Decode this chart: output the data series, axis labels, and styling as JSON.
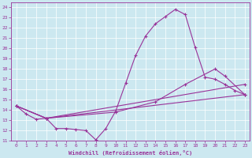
{
  "xlabel": "Windchill (Refroidissement éolien,°C)",
  "bg_color": "#cce8f0",
  "line_color": "#993399",
  "xlim": [
    -0.5,
    23.5
  ],
  "ylim": [
    11,
    24.5
  ],
  "xticks": [
    0,
    1,
    2,
    3,
    4,
    5,
    6,
    7,
    8,
    9,
    10,
    11,
    12,
    13,
    14,
    15,
    16,
    17,
    18,
    19,
    20,
    21,
    22,
    23
  ],
  "yticks": [
    11,
    12,
    13,
    14,
    15,
    16,
    17,
    18,
    19,
    20,
    21,
    22,
    23,
    24
  ],
  "line1_x": [
    0,
    1,
    2,
    3,
    4,
    5,
    6,
    7,
    8,
    9,
    10,
    11,
    12,
    13,
    14,
    15,
    16,
    17,
    18,
    19,
    20,
    21,
    22,
    23
  ],
  "line1_y": [
    14.4,
    13.6,
    13.1,
    13.2,
    12.2,
    12.2,
    12.1,
    12.0,
    11.1,
    12.2,
    13.9,
    16.6,
    19.3,
    21.2,
    22.4,
    23.1,
    23.8,
    23.3,
    20.1,
    17.2,
    17.0,
    16.5,
    15.9,
    15.5
  ],
  "line2_x": [
    0,
    3,
    10,
    14,
    17,
    20,
    21,
    23
  ],
  "line2_y": [
    14.4,
    13.2,
    13.8,
    14.8,
    16.5,
    18.0,
    17.3,
    15.5
  ],
  "line3_x": [
    0,
    3,
    23
  ],
  "line3_y": [
    14.4,
    13.2,
    16.5
  ],
  "line4_x": [
    0,
    3,
    23
  ],
  "line4_y": [
    14.4,
    13.2,
    15.5
  ],
  "marker": "+",
  "markersize": 3,
  "linewidth": 0.8
}
